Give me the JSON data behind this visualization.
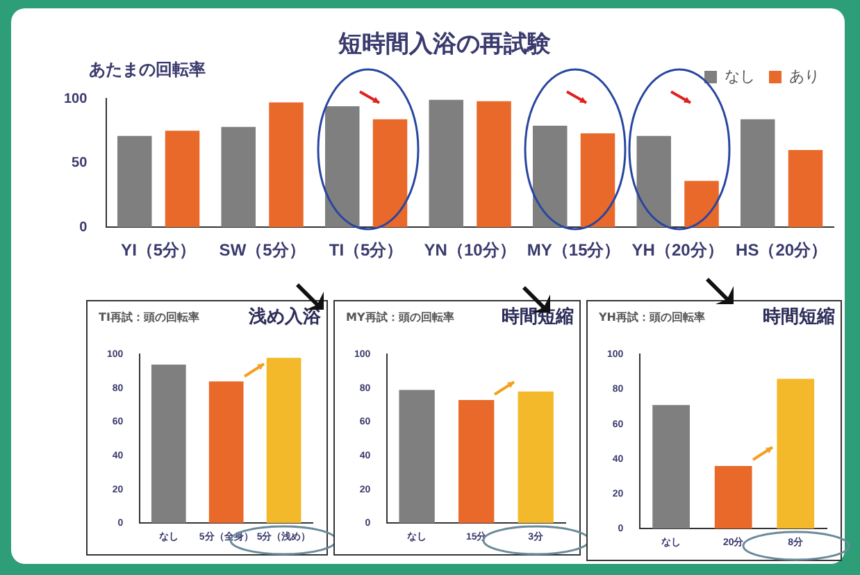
{
  "chart_data": [
    {
      "type": "bar",
      "title": "短時間入浴の再試験",
      "subtitle": "あたまの回転率",
      "categories": [
        "YI（5分）",
        "SW（5分）",
        "TI（5分）",
        "YN（10分）",
        "MY（15分）",
        "YH（20分）",
        "HS（20分）"
      ],
      "series": [
        {
          "name": "なし",
          "color": "#7f7f7f",
          "values": [
            71,
            78,
            94,
            99,
            79,
            71,
            84
          ]
        },
        {
          "name": "あり",
          "color": "#e8692a",
          "values": [
            75,
            97,
            84,
            98,
            73,
            36,
            60
          ]
        }
      ],
      "ylim": [
        0,
        100
      ],
      "yticks": [
        0,
        50,
        100
      ],
      "grid": false,
      "legend": "top right"
    },
    {
      "type": "bar",
      "title": "TI再試：頭の回転率",
      "annotations": [
        "浅め入浴"
      ],
      "categories": [
        "なし",
        "5分（全身）",
        "5分（浅め）"
      ],
      "values": [
        94,
        84,
        98
      ],
      "colors": [
        "#7f7f7f",
        "#e8692a",
        "#f4b92a"
      ],
      "ylim": [
        0,
        100
      ],
      "yticks": [
        0,
        20,
        40,
        60,
        80,
        100
      ],
      "grid": false
    },
    {
      "type": "bar",
      "title": "MY再試：頭の回転率",
      "annotations": [
        "時間短縮"
      ],
      "categories": [
        "なし",
        "15分",
        "3分"
      ],
      "values": [
        79,
        73,
        78
      ],
      "colors": [
        "#7f7f7f",
        "#e8692a",
        "#f4b92a"
      ],
      "ylim": [
        0,
        100
      ],
      "yticks": [
        0,
        20,
        40,
        60,
        80,
        100
      ],
      "grid": false
    },
    {
      "type": "bar",
      "title": "YH再試：頭の回転率",
      "annotations": [
        "時間短縮"
      ],
      "categories": [
        "なし",
        "20分",
        "8分"
      ],
      "values": [
        71,
        36,
        86
      ],
      "colors": [
        "#7f7f7f",
        "#e8692a",
        "#f4b92a"
      ],
      "ylim": [
        0,
        100
      ],
      "yticks": [
        0,
        20,
        40,
        60,
        80,
        100
      ],
      "grid": false
    }
  ]
}
